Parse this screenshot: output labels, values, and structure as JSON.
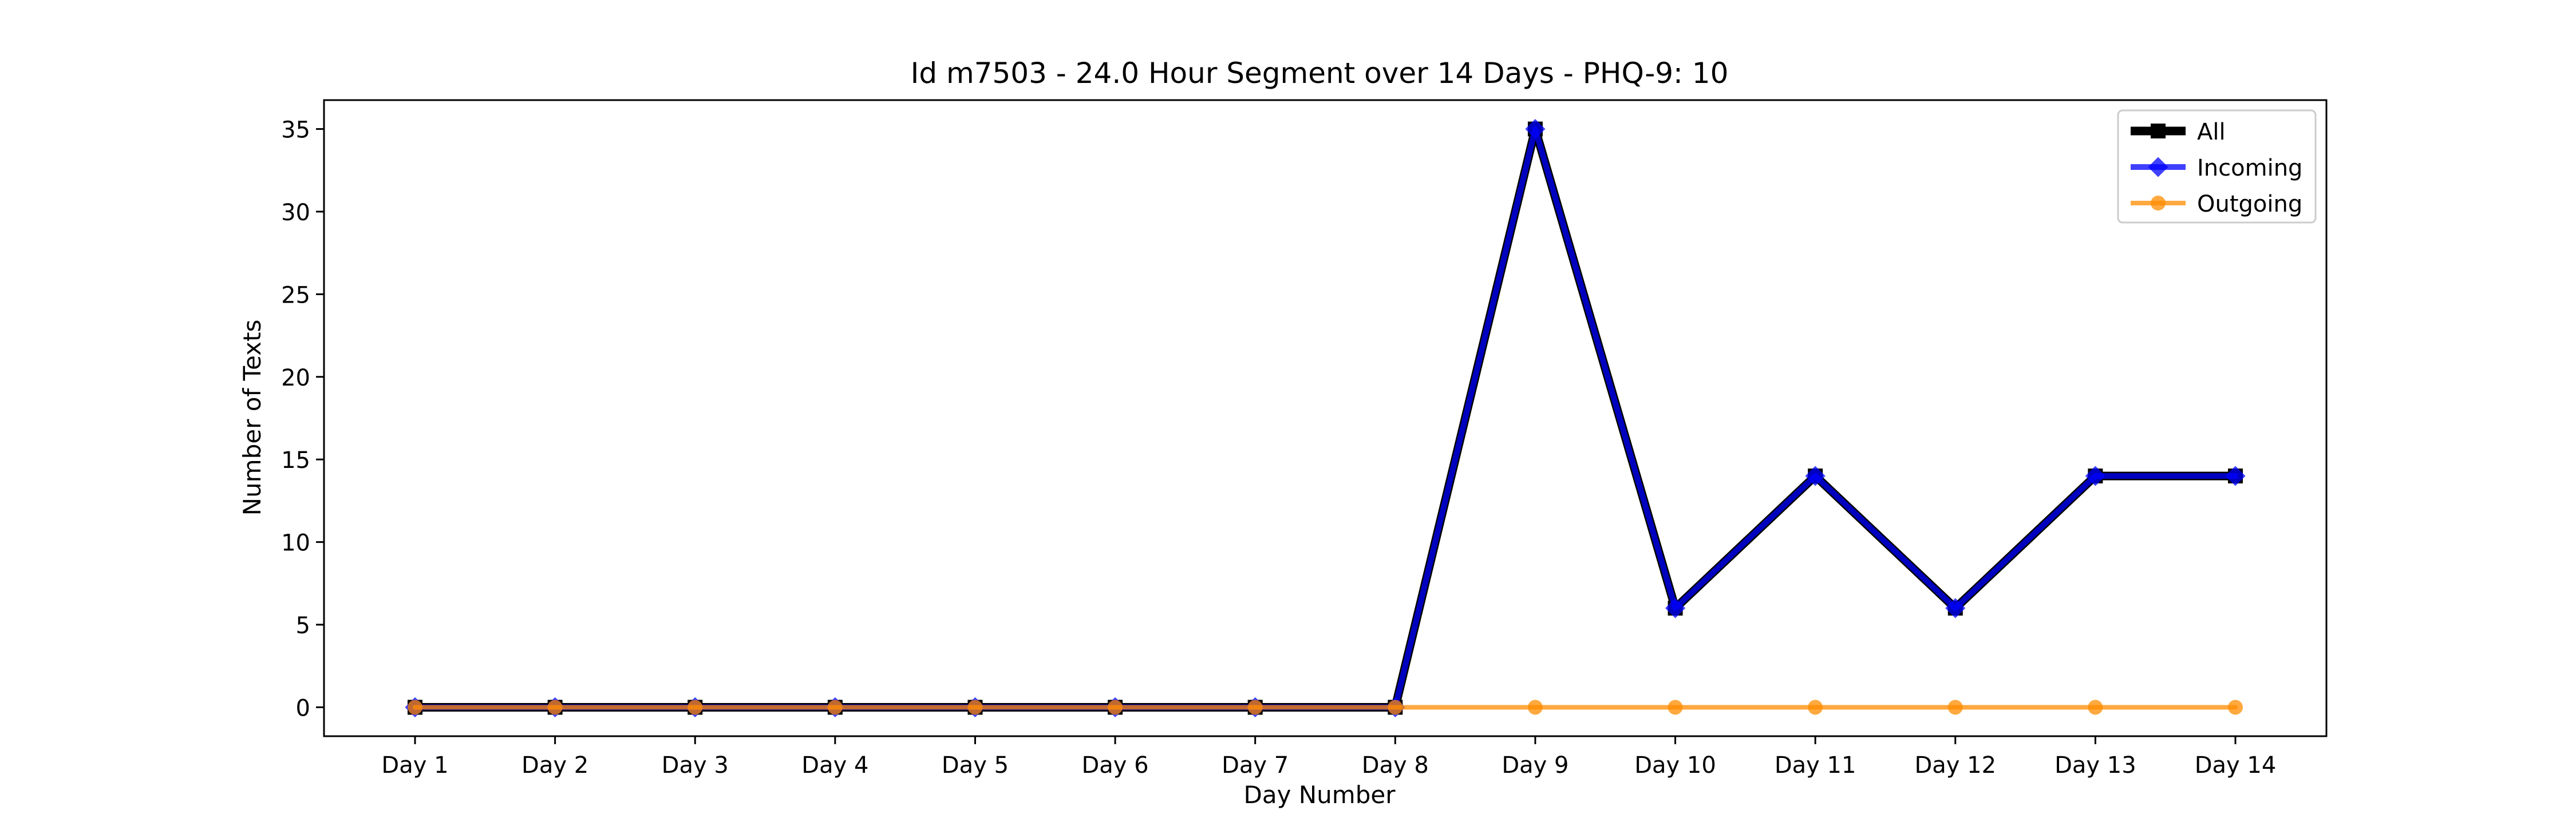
{
  "chart_data": {
    "type": "line",
    "title": "Id m7503 - 24.0 Hour Segment over 14 Days - PHQ-9: 10",
    "xlabel": "Day Number",
    "ylabel": "Number of Texts",
    "categories": [
      "Day 1",
      "Day 2",
      "Day 3",
      "Day 4",
      "Day 5",
      "Day 6",
      "Day 7",
      "Day 8",
      "Day 9",
      "Day 10",
      "Day 11",
      "Day 12",
      "Day 13",
      "Day 14"
    ],
    "ylim": [
      -1.75,
      36.75
    ],
    "yticks": [
      0,
      5,
      10,
      15,
      20,
      25,
      30,
      35
    ],
    "grid": false,
    "legend_position": "top-right",
    "series": [
      {
        "name": "All",
        "values": [
          0,
          0,
          0,
          0,
          0,
          0,
          0,
          0,
          35,
          6,
          14,
          6,
          14,
          14
        ],
        "color": "#000000",
        "marker": "square"
      },
      {
        "name": "Incoming",
        "values": [
          0,
          0,
          0,
          0,
          0,
          0,
          0,
          0,
          35,
          6,
          14,
          6,
          14,
          14
        ],
        "color": "#0000ff",
        "marker": "diamond"
      },
      {
        "name": "Outgoing",
        "values": [
          0,
          0,
          0,
          0,
          0,
          0,
          0,
          0,
          0,
          0,
          0,
          0,
          0,
          0
        ],
        "color": "#ff8c00",
        "marker": "circle"
      }
    ]
  }
}
